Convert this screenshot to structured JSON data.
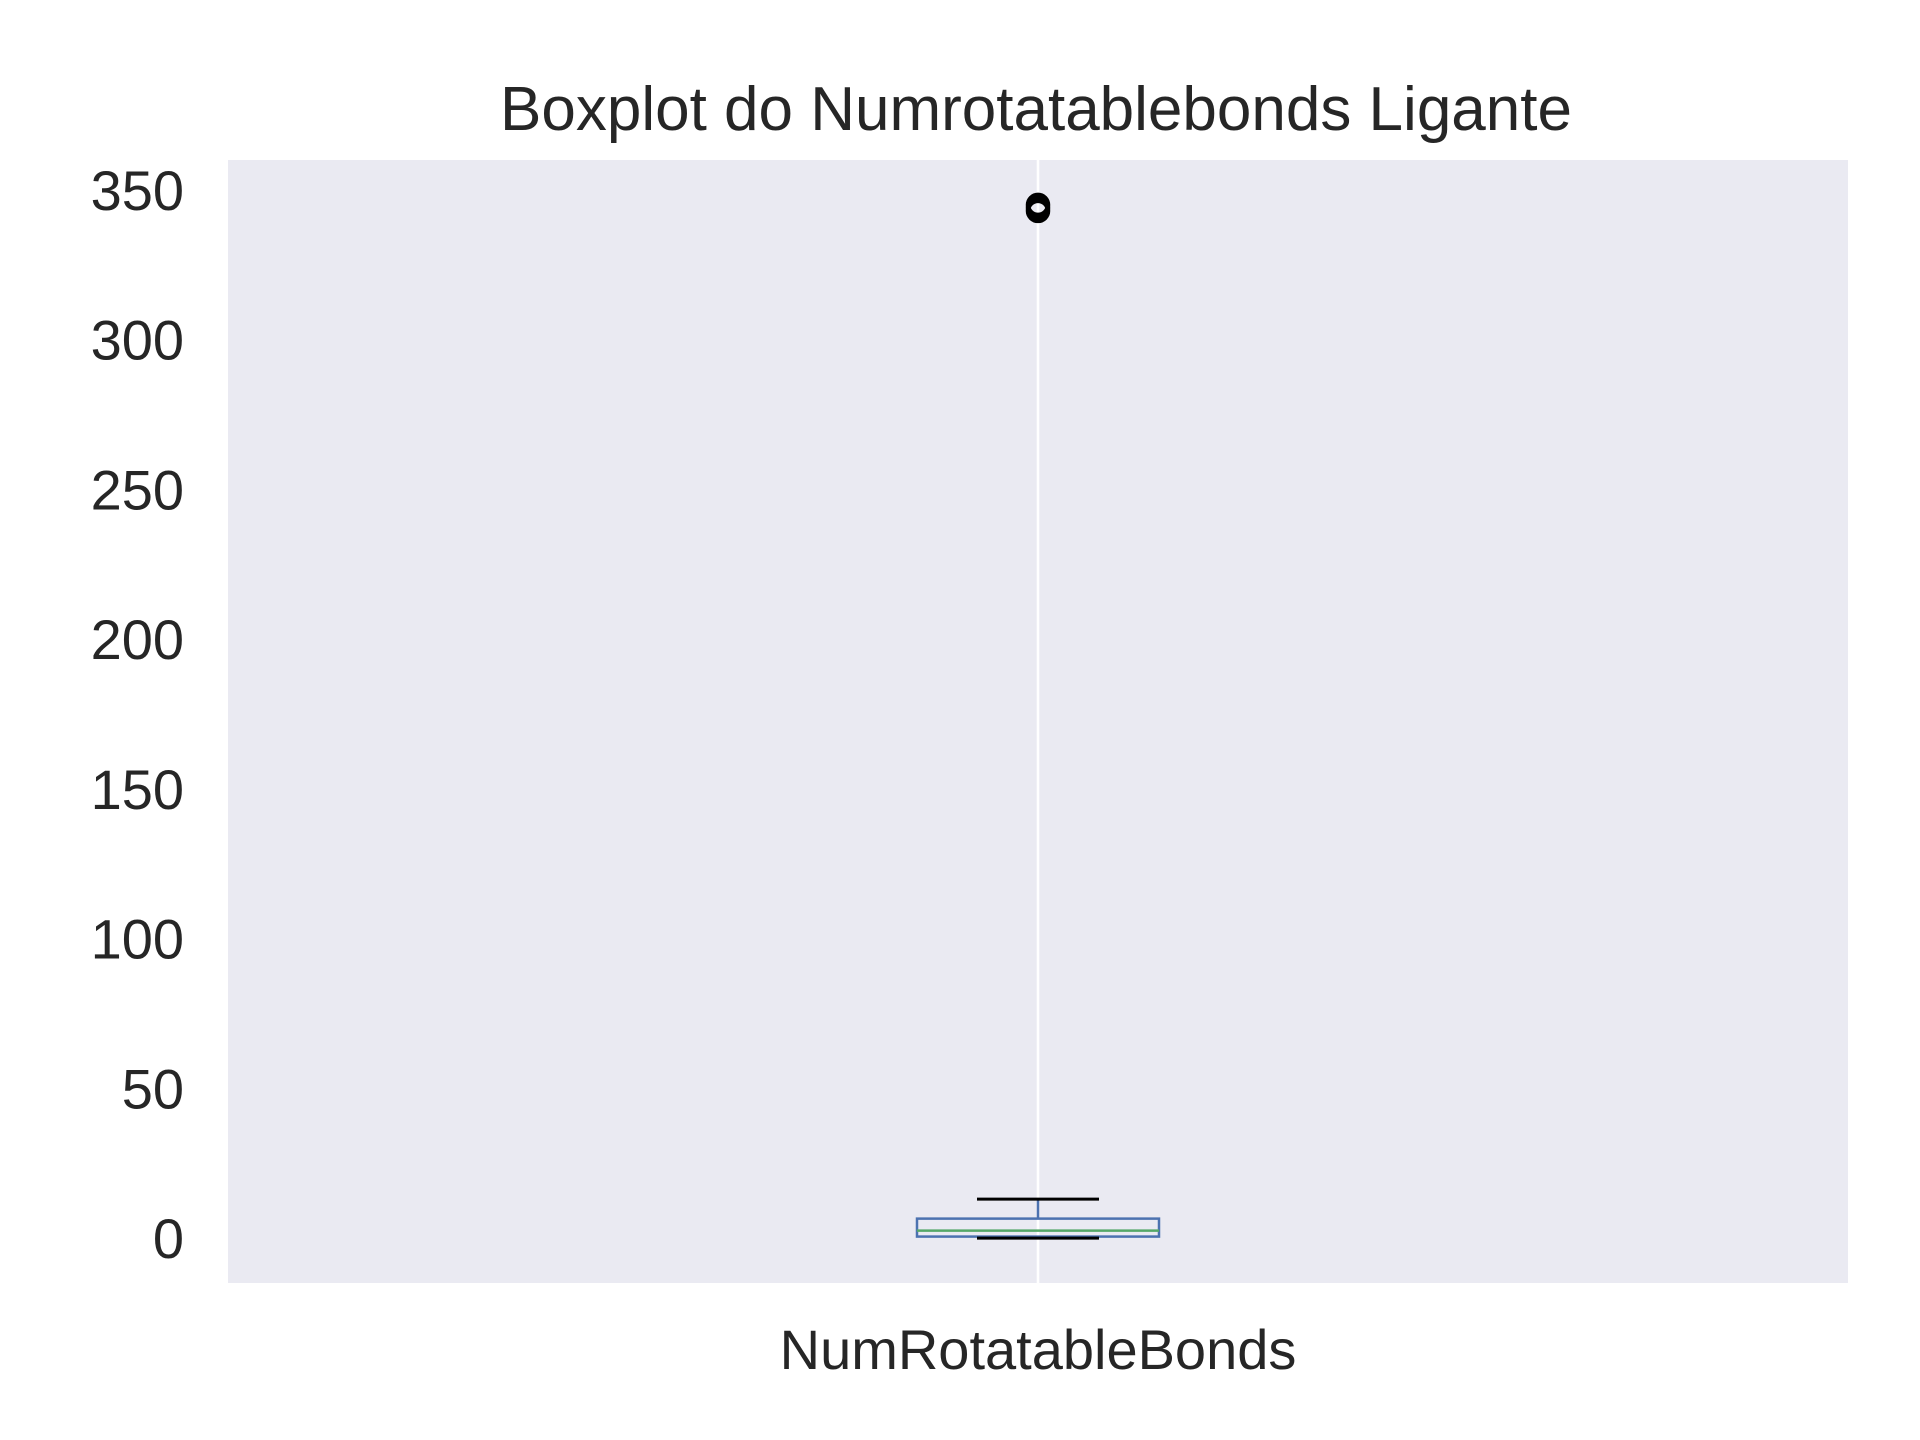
{
  "chart_data": {
    "type": "box",
    "title": "Boxplot do Numrotatablebonds Ligante",
    "xlabel": "",
    "ylabel": "",
    "categories": [
      "NumRotatableBonds"
    ],
    "boxes": [
      {
        "name": "NumRotatableBonds",
        "whisker_low": 0,
        "q1": 0.5,
        "median": 2.5,
        "q3": 6.5,
        "whisker_high": 13,
        "outliers": [
          343,
          344,
          345
        ]
      }
    ],
    "ylim": [
      -15,
      360
    ],
    "yticks": [
      0,
      50,
      100,
      150,
      200,
      250,
      300,
      350
    ],
    "grid": true,
    "legend": "none",
    "colors": {
      "plot_background": "#eaeaf2",
      "grid": "#ffffff",
      "box": "#4c72b0",
      "median": "#55a868",
      "cap": "#000000",
      "flier": "#000000",
      "text": "#262626"
    }
  }
}
